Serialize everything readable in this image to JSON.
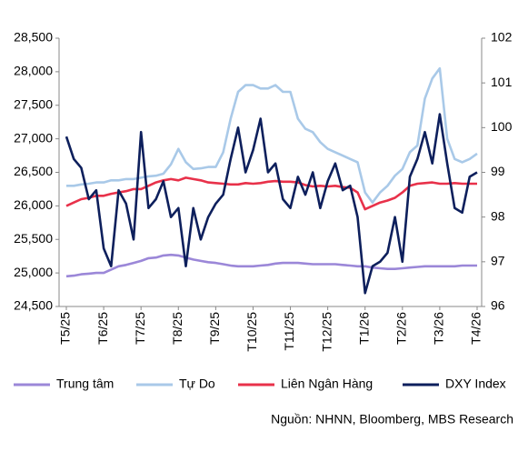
{
  "chart_data": {
    "type": "line",
    "categories": [
      "T5/25",
      null,
      null,
      null,
      null,
      "T6/25",
      null,
      null,
      null,
      null,
      "T7/25",
      null,
      null,
      null,
      null,
      "T8/25",
      null,
      null,
      null,
      null,
      "T9/25",
      null,
      null,
      null,
      null,
      "T10/25",
      null,
      null,
      null,
      null,
      "T11/25",
      null,
      null,
      null,
      null,
      "T12/25",
      null,
      null,
      null,
      null,
      "T1/26",
      null,
      null,
      null,
      null,
      "T2/26",
      null,
      null,
      null,
      null,
      "T3/26",
      null,
      null,
      null,
      null,
      "T4/26"
    ],
    "series": [
      {
        "name": "Trung tâm",
        "color": "#9b87d8",
        "values": [
          24950,
          24960,
          24980,
          24990,
          25000,
          25000,
          25050,
          25100,
          25120,
          25150,
          25180,
          25220,
          25230,
          25260,
          25270,
          25260,
          25230,
          25200,
          25180,
          25160,
          25150,
          25130,
          25110,
          25100,
          25100,
          25100,
          25110,
          25120,
          25140,
          25150,
          25150,
          25150,
          25140,
          25130,
          25130,
          25130,
          25130,
          25120,
          25110,
          25100,
          25100,
          25080,
          25070,
          25060,
          25060,
          25070,
          25080,
          25090,
          25100,
          25100,
          25100,
          25100,
          25100,
          25110,
          25110,
          25110
        ]
      },
      {
        "name": "Tự Do",
        "color": "#a9c9e8",
        "values": [
          26300,
          26300,
          26320,
          26330,
          26350,
          26350,
          26380,
          26380,
          26400,
          26400,
          26420,
          26440,
          26450,
          26480,
          26620,
          26850,
          26650,
          26550,
          26560,
          26580,
          26580,
          26800,
          27300,
          27700,
          27800,
          27800,
          27750,
          27750,
          27800,
          27700,
          27700,
          27300,
          27150,
          27100,
          26950,
          26850,
          26800,
          26750,
          26700,
          26650,
          26200,
          26050,
          26200,
          26300,
          26450,
          26550,
          26800,
          26900,
          27600,
          27900,
          28050,
          27000,
          26700,
          26650,
          26700,
          26780
        ]
      },
      {
        "name": "Liên Ngân Hàng",
        "color": "#e8314a",
        "values": [
          26000,
          26050,
          26100,
          26120,
          26150,
          26150,
          26180,
          26200,
          26220,
          26250,
          26250,
          26300,
          26350,
          26380,
          26400,
          26380,
          26420,
          26400,
          26380,
          26350,
          26340,
          26330,
          26320,
          26320,
          26340,
          26330,
          26340,
          26360,
          26370,
          26360,
          26360,
          26350,
          26310,
          26290,
          26300,
          26290,
          26300,
          26280,
          26270,
          26200,
          25950,
          26000,
          26050,
          26080,
          26120,
          26200,
          26300,
          26330,
          26340,
          26350,
          26330,
          26330,
          26340,
          26330,
          26330,
          26330
        ]
      },
      {
        "name": "DXY Index",
        "color": "#0d1f5c",
        "axis": "y2",
        "values": [
          99.8,
          99.3,
          99.1,
          98.4,
          98.6,
          97.3,
          96.9,
          98.6,
          98.3,
          97.5,
          99.9,
          98.2,
          98.4,
          98.8,
          98.0,
          98.2,
          96.9,
          98.2,
          97.5,
          98.0,
          98.3,
          98.5,
          99.3,
          100.0,
          99.0,
          99.5,
          100.2,
          99.0,
          99.2,
          98.4,
          98.2,
          98.9,
          98.5,
          99.0,
          98.2,
          98.8,
          99.2,
          98.6,
          98.7,
          98.0,
          96.3,
          96.9,
          97.0,
          97.2,
          98.0,
          97.0,
          98.9,
          99.3,
          99.9,
          99.2,
          100.3,
          99.2,
          98.2,
          98.1,
          98.9,
          99.0
        ]
      }
    ],
    "ylim": [
      24500,
      28500
    ],
    "yticks": [
      {
        "value": 24500,
        "label": "24,500"
      },
      {
        "value": 25000,
        "label": "25,000"
      },
      {
        "value": 25500,
        "label": "25,500"
      },
      {
        "value": 26000,
        "label": "26,000"
      },
      {
        "value": 26500,
        "label": "26,500"
      },
      {
        "value": 27000,
        "label": "27,000"
      },
      {
        "value": 27500,
        "label": "27,500"
      },
      {
        "value": 28000,
        "label": "28,000"
      },
      {
        "value": 28500,
        "label": "28,500"
      }
    ],
    "y2lim": [
      96,
      102
    ],
    "y2ticks": [
      96,
      97,
      98,
      99,
      100,
      101,
      102
    ],
    "source": "Nguồn: NHNN, Bloomberg, MBS Research"
  }
}
